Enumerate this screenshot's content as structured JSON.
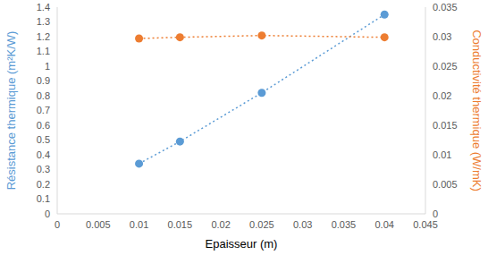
{
  "chart_data": {
    "type": "scatter",
    "x_label": "Epaisseur (m)",
    "y_label": "Résistance thermique (m²K/W)",
    "y2_label": "Conductivité thermique (W/mK)",
    "x": [
      0.01,
      0.015,
      0.025,
      0.04
    ],
    "xlim": [
      0,
      0.045
    ],
    "xticks": [
      0,
      0.005,
      0.01,
      0.015,
      0.02,
      0.025,
      0.03,
      0.035,
      0.04,
      0.045
    ],
    "ylim": [
      0,
      1.4
    ],
    "yticks": [
      0,
      0.1,
      0.2,
      0.3,
      0.4,
      0.5,
      0.6,
      0.7,
      0.8,
      0.9,
      1,
      1.1,
      1.2,
      1.3,
      1.4
    ],
    "y2lim": [
      0,
      0.035
    ],
    "y2ticks": [
      0,
      0.005,
      0.01,
      0.015,
      0.02,
      0.025,
      0.03,
      0.035
    ],
    "grid": false,
    "series": [
      {
        "color": "#5b9bd5",
        "marker": "circle",
        "line_style": "dotted",
        "values": [
          0.34,
          0.49,
          0.82,
          1.35
        ]
      },
      {
        "color": "#ed7d31",
        "marker": "circle",
        "line_style": "dotted",
        "axis": "y2",
        "values": [
          0.0297,
          0.0299,
          0.0302,
          0.0299
        ]
      }
    ]
  }
}
